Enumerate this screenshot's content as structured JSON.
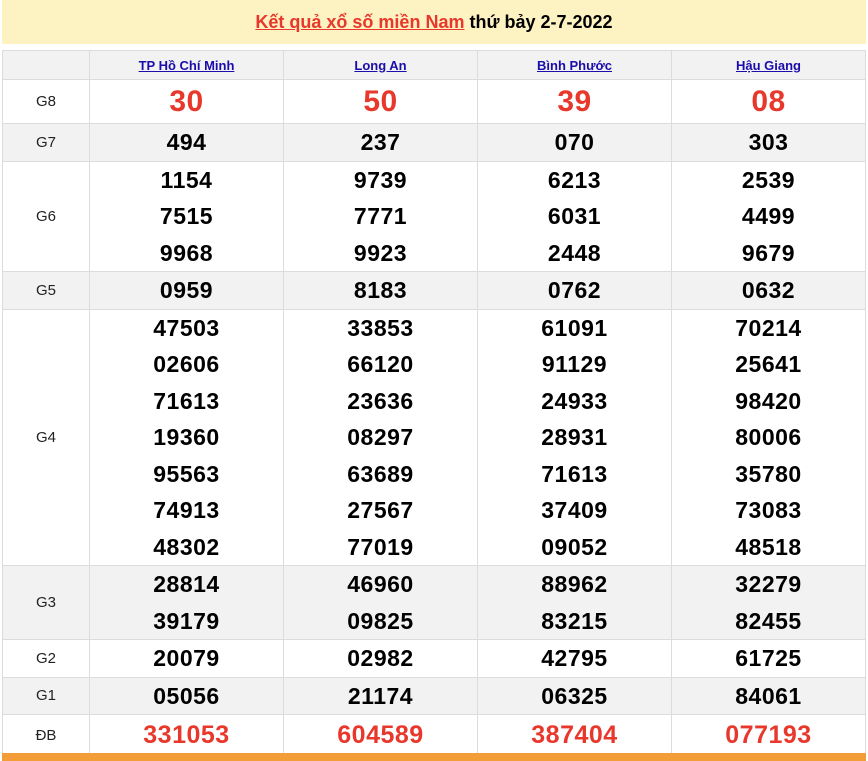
{
  "header": {
    "title_link": "Kết quả xổ số miền Nam",
    "date_text": " thứ bảy 2-7-2022"
  },
  "provinces": [
    "TP Hồ Chí Minh",
    "Long An",
    "Bình Phước",
    "Hậu Giang"
  ],
  "prizes": [
    {
      "label": "G8",
      "style": "big",
      "results": [
        [
          "30"
        ],
        [
          "50"
        ],
        [
          "39"
        ],
        [
          "08"
        ]
      ]
    },
    {
      "label": "G7",
      "results": [
        [
          "494"
        ],
        [
          "237"
        ],
        [
          "070"
        ],
        [
          "303"
        ]
      ]
    },
    {
      "label": "G6",
      "results": [
        [
          "1154",
          "7515",
          "9968"
        ],
        [
          "9739",
          "7771",
          "9923"
        ],
        [
          "6213",
          "6031",
          "2448"
        ],
        [
          "2539",
          "4499",
          "9679"
        ]
      ]
    },
    {
      "label": "G5",
      "results": [
        [
          "0959"
        ],
        [
          "8183"
        ],
        [
          "0762"
        ],
        [
          "0632"
        ]
      ]
    },
    {
      "label": "G4",
      "results": [
        [
          "47503",
          "02606",
          "71613",
          "19360",
          "95563",
          "74913",
          "48302"
        ],
        [
          "33853",
          "66120",
          "23636",
          "08297",
          "63689",
          "27567",
          "77019"
        ],
        [
          "61091",
          "91129",
          "24933",
          "28931",
          "71613",
          "37409",
          "09052"
        ],
        [
          "70214",
          "25641",
          "98420",
          "80006",
          "35780",
          "73083",
          "48518"
        ]
      ]
    },
    {
      "label": "G3",
      "results": [
        [
          "28814",
          "39179"
        ],
        [
          "46960",
          "09825"
        ],
        [
          "88962",
          "83215"
        ],
        [
          "32279",
          "82455"
        ]
      ]
    },
    {
      "label": "G2",
      "results": [
        [
          "20079"
        ],
        [
          "02982"
        ],
        [
          "42795"
        ],
        [
          "61725"
        ]
      ]
    },
    {
      "label": "G1",
      "results": [
        [
          "05056"
        ],
        [
          "21174"
        ],
        [
          "06325"
        ],
        [
          "84061"
        ]
      ]
    },
    {
      "label": "ĐB",
      "style": "db",
      "results": [
        [
          "331053"
        ],
        [
          "604589"
        ],
        [
          "387404"
        ],
        [
          "077193"
        ]
      ]
    }
  ],
  "colors": {
    "highlight": "#e8372b",
    "header_bg": "#fdf2c2",
    "footer_bar": "#f29d38",
    "link": "#1a0dab"
  }
}
